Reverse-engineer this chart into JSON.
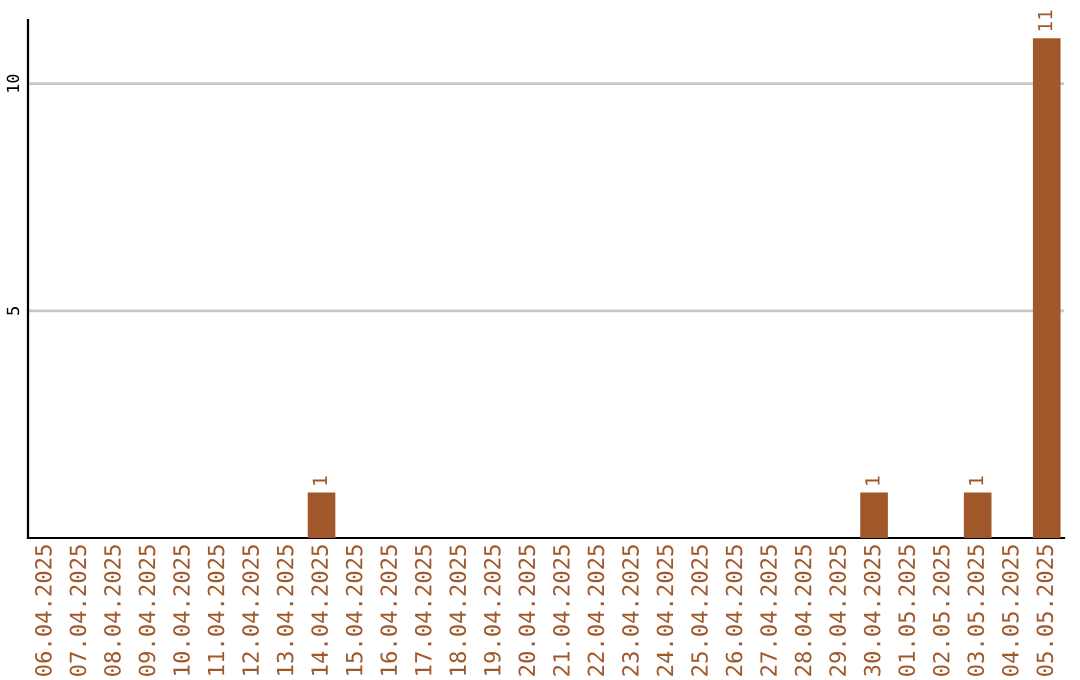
{
  "chart_data": {
    "type": "bar",
    "categories": [
      "06.04.2025",
      "07.04.2025",
      "08.04.2025",
      "09.04.2025",
      "10.04.2025",
      "11.04.2025",
      "12.04.2025",
      "13.04.2025",
      "14.04.2025",
      "15.04.2025",
      "16.04.2025",
      "17.04.2025",
      "18.04.2025",
      "19.04.2025",
      "20.04.2025",
      "21.04.2025",
      "22.04.2025",
      "23.04.2025",
      "24.04.2025",
      "25.04.2025",
      "26.04.2025",
      "27.04.2025",
      "28.04.2025",
      "29.04.2025",
      "30.04.2025",
      "01.05.2025",
      "02.05.2025",
      "03.05.2025",
      "04.05.2025",
      "05.05.2025"
    ],
    "values": [
      0,
      0,
      0,
      0,
      0,
      0,
      0,
      0,
      1,
      0,
      0,
      0,
      0,
      0,
      0,
      0,
      0,
      0,
      0,
      0,
      0,
      0,
      0,
      0,
      1,
      0,
      0,
      1,
      0,
      11
    ],
    "value_labels": [
      null,
      null,
      null,
      null,
      null,
      null,
      null,
      null,
      "1",
      null,
      null,
      null,
      null,
      null,
      null,
      null,
      null,
      null,
      null,
      null,
      null,
      null,
      null,
      null,
      "1",
      null,
      null,
      "1",
      null,
      "11"
    ],
    "color": "#a0582a",
    "ylim": [
      0,
      11.4
    ],
    "yticks": [
      5,
      10
    ],
    "grid": "y"
  }
}
